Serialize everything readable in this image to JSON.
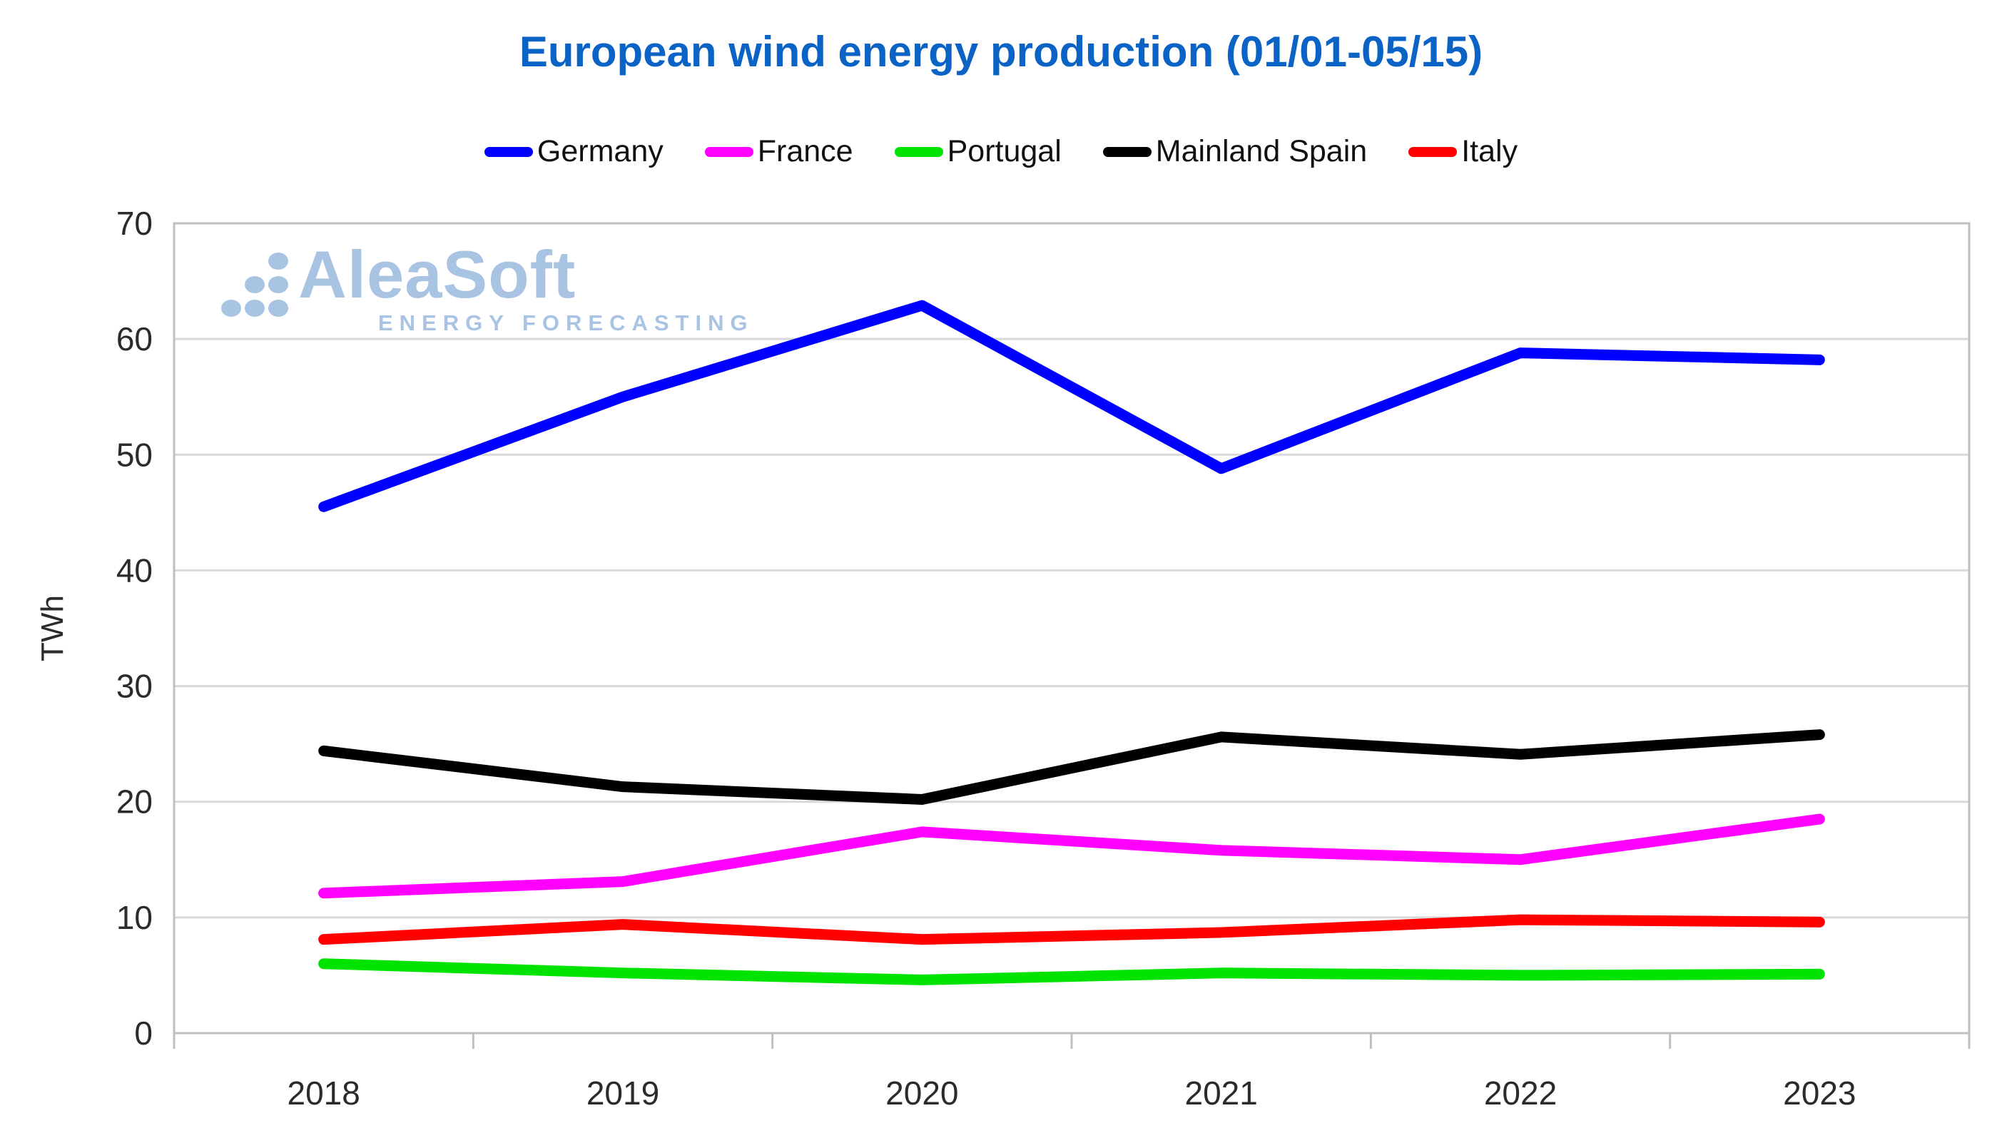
{
  "page": {
    "title": "European wind energy production (01/01-05/15)"
  },
  "watermark": {
    "brand": "AleaSoft",
    "tagline": "ENERGY FORECASTING"
  },
  "colors": {
    "title": "#0b63c5",
    "watermark": "#a9c3e3",
    "grid": "#d9d9d9",
    "axis": "#bfbfbf",
    "tick_text": "#2b2b2b"
  },
  "chart_data": {
    "type": "line",
    "title": "European wind energy production (01/01-05/15)",
    "xlabel": "",
    "ylabel": "TWh",
    "ylim": [
      0,
      70
    ],
    "yticks": [
      0,
      10,
      20,
      30,
      40,
      50,
      60,
      70
    ],
    "grid": true,
    "legend_position": "top",
    "categories": [
      "2018",
      "2019",
      "2020",
      "2021",
      "2022",
      "2023"
    ],
    "series": [
      {
        "name": "Germany",
        "color": "#0000ff",
        "values": [
          45.5,
          55.0,
          62.9,
          48.8,
          58.8,
          58.2
        ]
      },
      {
        "name": "France",
        "color": "#ff00ff",
        "values": [
          12.1,
          13.1,
          17.4,
          15.8,
          15.0,
          18.5
        ]
      },
      {
        "name": "Portugal",
        "color": "#00e300",
        "values": [
          6.0,
          5.2,
          4.6,
          5.2,
          5.0,
          5.1
        ]
      },
      {
        "name": "Mainland Spain",
        "color": "#000000",
        "values": [
          24.4,
          21.3,
          20.2,
          25.6,
          24.1,
          25.8
        ]
      },
      {
        "name": "Italy",
        "color": "#ff0000",
        "values": [
          8.1,
          9.4,
          8.1,
          8.7,
          9.8,
          9.6
        ]
      }
    ]
  }
}
